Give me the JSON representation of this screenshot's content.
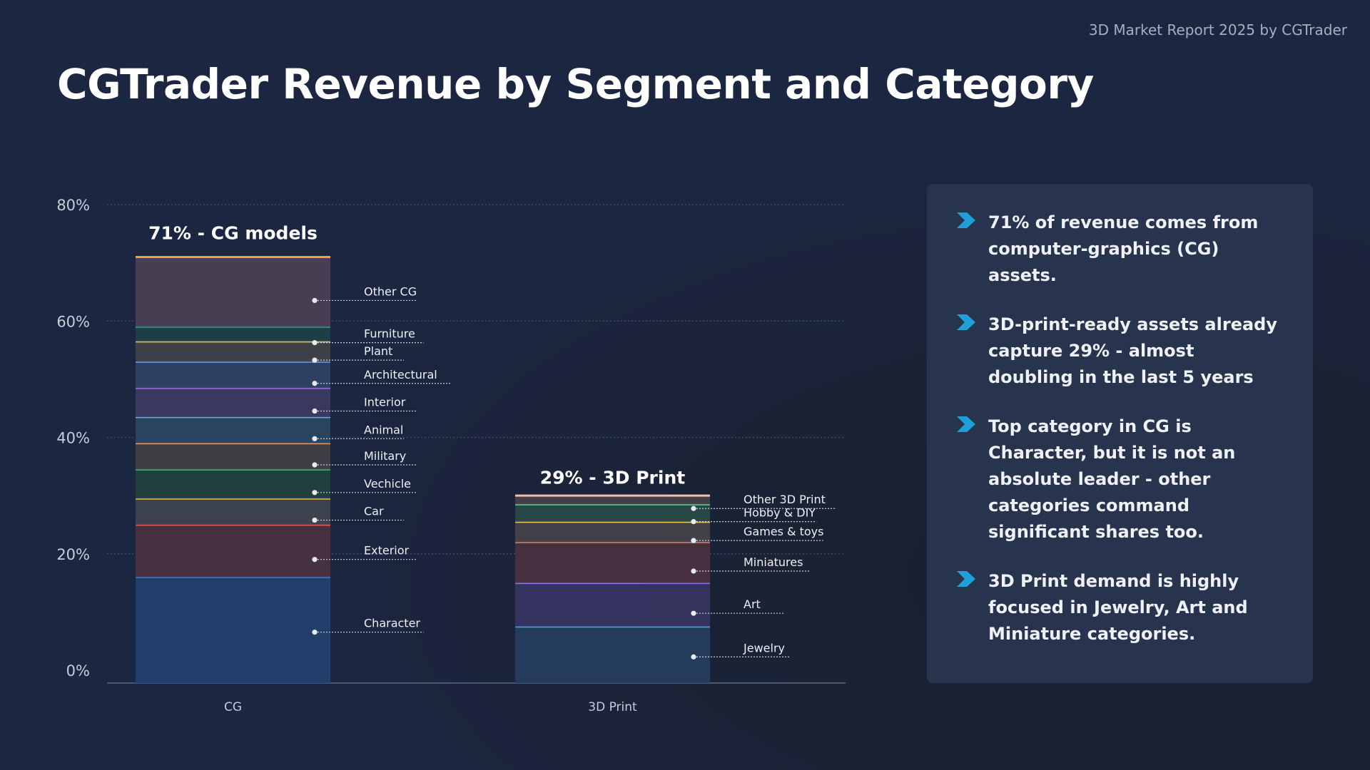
{
  "report_tag": "3D Market Report 2025 by CGTrader",
  "title": "CGTrader Revenue by Segment and Category",
  "insights": [
    "71% of revenue comes from computer-graphics (CG) assets.",
    "3D-print-ready assets already capture 29% - almost doubling in the last 5 years",
    "Top category in CG is Character, but it is not an absolute leader - other categories command significant shares too.",
    "3D Print demand is highly focused in Jewelry, Art and Miniature categories."
  ],
  "colors": {
    "accent": "#1e9fd8",
    "grid": "#3d4b66",
    "panel": "#28344d"
  },
  "chart_data": {
    "type": "bar",
    "stacked": true,
    "categories": [
      "CG",
      "3D Print"
    ],
    "ylim": [
      0,
      80
    ],
    "yticks": [
      "0%",
      "20%",
      "40%",
      "60%",
      "80%"
    ],
    "ytick_values": [
      0,
      20,
      40,
      60,
      80
    ],
    "grid": true,
    "bar_totals": [
      {
        "label": "71% - CG models",
        "value": 71
      },
      {
        "label": "29% - 3D Print",
        "value": 29
      }
    ],
    "stacks": [
      {
        "category": "CG",
        "segments": [
          {
            "name": "Character",
            "value": 16,
            "line": "#3a7be0",
            "fill": "#233f6e"
          },
          {
            "name": "Exterior",
            "value": 9,
            "line": "#e0544c",
            "fill": "#4a3040"
          },
          {
            "name": "Car",
            "value": 4.5,
            "line": "#f0b040",
            "fill": "#3e4450"
          },
          {
            "name": "Vechicle",
            "value": 5,
            "line": "#3cba6c",
            "fill": "#21413f"
          },
          {
            "name": "Military",
            "value": 4.5,
            "line": "#f09a60",
            "fill": "#423d45"
          },
          {
            "name": "Animal",
            "value": 4.5,
            "line": "#5cb8e8",
            "fill": "#2b4662"
          },
          {
            "name": "Interior",
            "value": 5,
            "line": "#9a6ee0",
            "fill": "#3b3a62"
          },
          {
            "name": "Architectural",
            "value": 4.5,
            "line": "#6a9ae8",
            "fill": "#2d4165"
          },
          {
            "name": "Plant",
            "value": 3.5,
            "line": "#f0c43c",
            "fill": "#41424a"
          },
          {
            "name": "Furniture",
            "value": 2.5,
            "line": "#1aa88c",
            "fill": "#1d3f48"
          },
          {
            "name": "Other CG",
            "value": 12,
            "line": "#f0a040",
            "fill": "#4a4052"
          }
        ]
      },
      {
        "category": "3D Print",
        "segments": [
          {
            "name": "Jewelry",
            "value": 7.5,
            "line": "#2fb4ea",
            "fill": "#253d5e"
          },
          {
            "name": "Art",
            "value": 7.5,
            "line": "#8a70e0",
            "fill": "#373561"
          },
          {
            "name": "Miniatures",
            "value": 7,
            "line": "#f07a70",
            "fill": "#4a3040"
          },
          {
            "name": "Games & toys",
            "value": 3.5,
            "line": "#f0c060",
            "fill": "#44434a"
          },
          {
            "name": "Hobby & DIY",
            "value": 3,
            "line": "#5cd47c",
            "fill": "#294a47"
          },
          {
            "name": "Other 3D Print",
            "value": 1.5,
            "line": "#f0c0a8",
            "fill": "#44404c"
          }
        ]
      }
    ]
  }
}
